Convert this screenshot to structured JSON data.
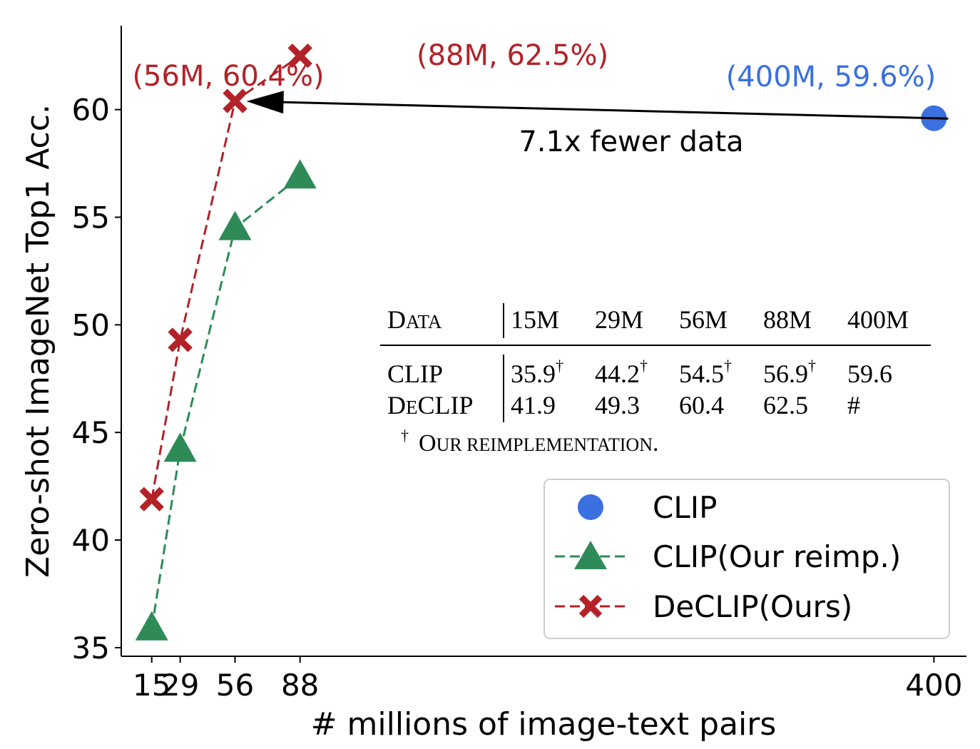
{
  "chart_data": {
    "type": "line",
    "xlabel": "# millions of image-text pairs",
    "ylabel": "Zero-shot ImageNet Top1 Acc.",
    "xlim": [
      0,
      416
    ],
    "ylim": [
      34.6,
      63.9
    ],
    "x_ticks": [
      15,
      29,
      56,
      88,
      400
    ],
    "y_ticks": [
      35,
      40,
      45,
      50,
      55,
      60
    ],
    "grid": false,
    "legend_position": "lower-right",
    "series": [
      {
        "name": "CLIP",
        "marker": "circle",
        "color": "#3a70e0",
        "line": false,
        "x": [
          400
        ],
        "y": [
          59.6
        ]
      },
      {
        "name": "CLIP(Our reimp.)",
        "marker": "triangle",
        "color": "#2e8b57",
        "line": "dashed",
        "x": [
          15,
          29,
          56,
          88
        ],
        "y": [
          35.9,
          44.2,
          54.5,
          56.9
        ]
      },
      {
        "name": "DeCLIP(Ours)",
        "marker": "x",
        "color": "#b22228",
        "line": "dashed",
        "x": [
          15,
          29,
          56,
          88
        ],
        "y": [
          41.9,
          49.3,
          60.4,
          62.5
        ]
      }
    ],
    "annotations": [
      {
        "text": "(56M, 60.4%)",
        "color": "#b22228"
      },
      {
        "text": "(88M, 62.5%)",
        "color": "#b22228"
      },
      {
        "text": "(400M, 59.6%)",
        "color": "#3a70e0"
      },
      {
        "text": "7.1x fewer data",
        "color": "#000000"
      }
    ],
    "inset_table": {
      "header": [
        "Data",
        "15M",
        "29M",
        "56M",
        "88M",
        "400M"
      ],
      "rows": [
        [
          "CLIP",
          "35.9",
          "44.2",
          "54.5",
          "56.9",
          "59.6"
        ],
        [
          "DeCLIP",
          "41.9",
          "49.3",
          "60.4",
          "62.5",
          "#"
        ]
      ],
      "dagger_mark": "†",
      "footnote": "Our reimplementation."
    }
  }
}
